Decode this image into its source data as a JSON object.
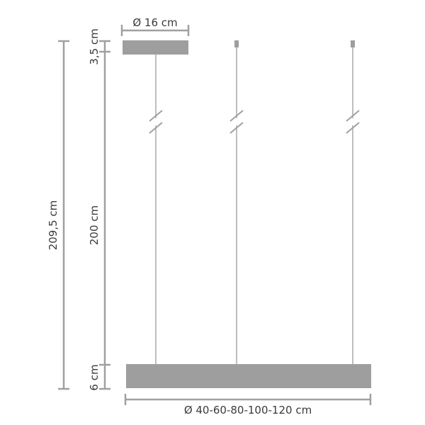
{
  "colors": {
    "fill": "#9e9e9e",
    "line": "#a0a0a0",
    "text": "#3a3a3a"
  },
  "dimensions": {
    "canopy_diameter": "Ø 16 cm",
    "canopy_height": "3,5 cm",
    "total_height": "209,5 cm",
    "cable_length": "200 cm",
    "lamp_height": "6 cm",
    "lamp_diameter": "Ø 40-60-80-100-120 cm"
  }
}
